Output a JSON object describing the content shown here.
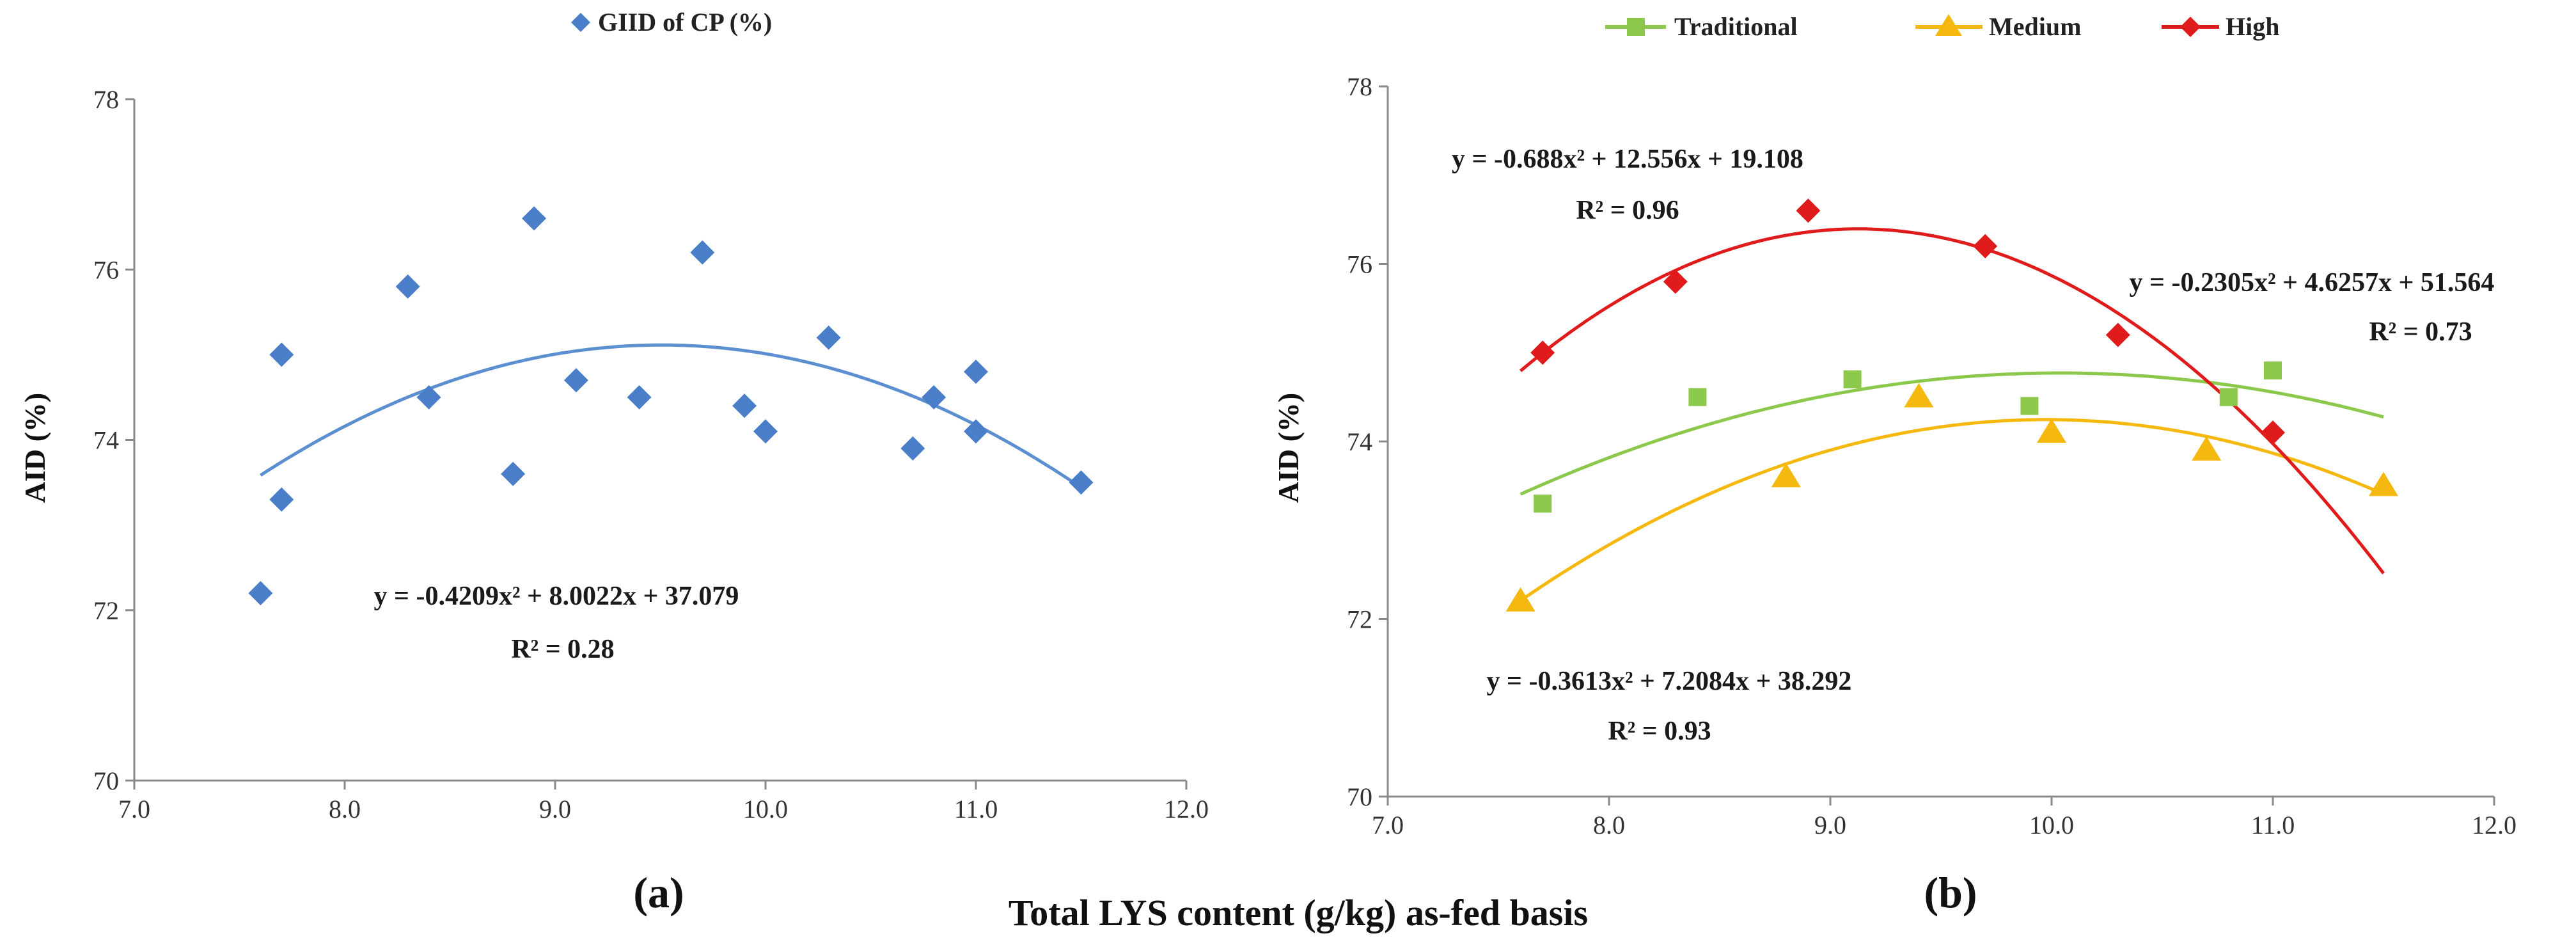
{
  "figure": {
    "shared_xlabel": "Total LYS content (g/kg) as-fed basis"
  },
  "chart_data": [
    {
      "panel_label": "(a)",
      "type": "scatter",
      "ylabel": "AID (%)",
      "xlim": [
        7.0,
        12.0
      ],
      "ylim": [
        70,
        78
      ],
      "x_ticks": [
        "7.0",
        "8.0",
        "9.0",
        "10.0",
        "11.0",
        "12.0"
      ],
      "y_ticks": [
        "70",
        "72",
        "74",
        "76",
        "78"
      ],
      "grid": false,
      "legend_position": "top",
      "series": [
        {
          "name": "GIID of CP (%)",
          "marker": "diamond",
          "color": "#4a7ec8",
          "points": [
            [
              7.6,
              72.2
            ],
            [
              7.7,
              73.3
            ],
            [
              7.7,
              75.0
            ],
            [
              8.3,
              75.8
            ],
            [
              8.4,
              74.5
            ],
            [
              8.8,
              73.6
            ],
            [
              8.9,
              76.6
            ],
            [
              9.1,
              74.7
            ],
            [
              9.4,
              74.5
            ],
            [
              9.7,
              76.2
            ],
            [
              9.9,
              74.4
            ],
            [
              10.0,
              74.1
            ],
            [
              10.3,
              75.2
            ],
            [
              10.7,
              73.9
            ],
            [
              10.8,
              74.5
            ],
            [
              11.0,
              74.1
            ],
            [
              11.0,
              74.8
            ],
            [
              11.5,
              73.5
            ]
          ],
          "trendline": {
            "a": -0.4209,
            "b": 8.0022,
            "c": 37.079,
            "x_range": [
              7.6,
              11.5
            ]
          },
          "equation": "y = -0.4209x² + 8.0022x + 37.079",
          "r2": "R² = 0.28"
        }
      ]
    },
    {
      "panel_label": "(b)",
      "type": "scatter",
      "ylabel": "AID (%)",
      "xlim": [
        7.0,
        12.0
      ],
      "ylim": [
        70,
        78
      ],
      "x_ticks": [
        "7.0",
        "8.0",
        "9.0",
        "10.0",
        "11.0",
        "12.0"
      ],
      "y_ticks": [
        "70",
        "72",
        "74",
        "76",
        "78"
      ],
      "grid": false,
      "legend_position": "top",
      "series": [
        {
          "name": "Traditional",
          "marker": "square",
          "color": "#8cc84b",
          "points": [
            [
              7.7,
              73.3
            ],
            [
              8.4,
              74.5
            ],
            [
              9.1,
              74.7
            ],
            [
              9.9,
              74.4
            ],
            [
              10.8,
              74.5
            ],
            [
              11.0,
              74.8
            ]
          ],
          "trendline": {
            "a": -0.2305,
            "b": 4.6257,
            "c": 51.564,
            "x_range": [
              7.6,
              11.5
            ]
          },
          "equation": "y = -0.2305x² + 4.6257x + 51.564",
          "r2": "R² = 0.73"
        },
        {
          "name": "Medium",
          "marker": "triangle",
          "color": "#f5b80f",
          "points": [
            [
              7.6,
              72.2
            ],
            [
              8.8,
              73.6
            ],
            [
              9.4,
              74.5
            ],
            [
              10.0,
              74.1
            ],
            [
              10.7,
              73.9
            ],
            [
              11.5,
              73.5
            ]
          ],
          "trendline": {
            "a": -0.3613,
            "b": 7.2084,
            "c": 38.292,
            "x_range": [
              7.6,
              11.5
            ]
          },
          "equation": "y = -0.3613x² + 7.2084x + 38.292",
          "r2": "R² = 0.93"
        },
        {
          "name": "High",
          "marker": "diamond",
          "color": "#e01b1b",
          "points": [
            [
              7.7,
              75.0
            ],
            [
              8.3,
              75.8
            ],
            [
              8.9,
              76.6
            ],
            [
              9.7,
              76.2
            ],
            [
              10.3,
              75.2
            ],
            [
              11.0,
              74.1
            ]
          ],
          "trendline": {
            "a": -0.688,
            "b": 12.556,
            "c": 19.108,
            "x_range": [
              7.6,
              11.5
            ]
          },
          "equation": "y = -0.688x² + 12.556x + 19.108",
          "r2": "R² = 0.96"
        }
      ]
    }
  ]
}
